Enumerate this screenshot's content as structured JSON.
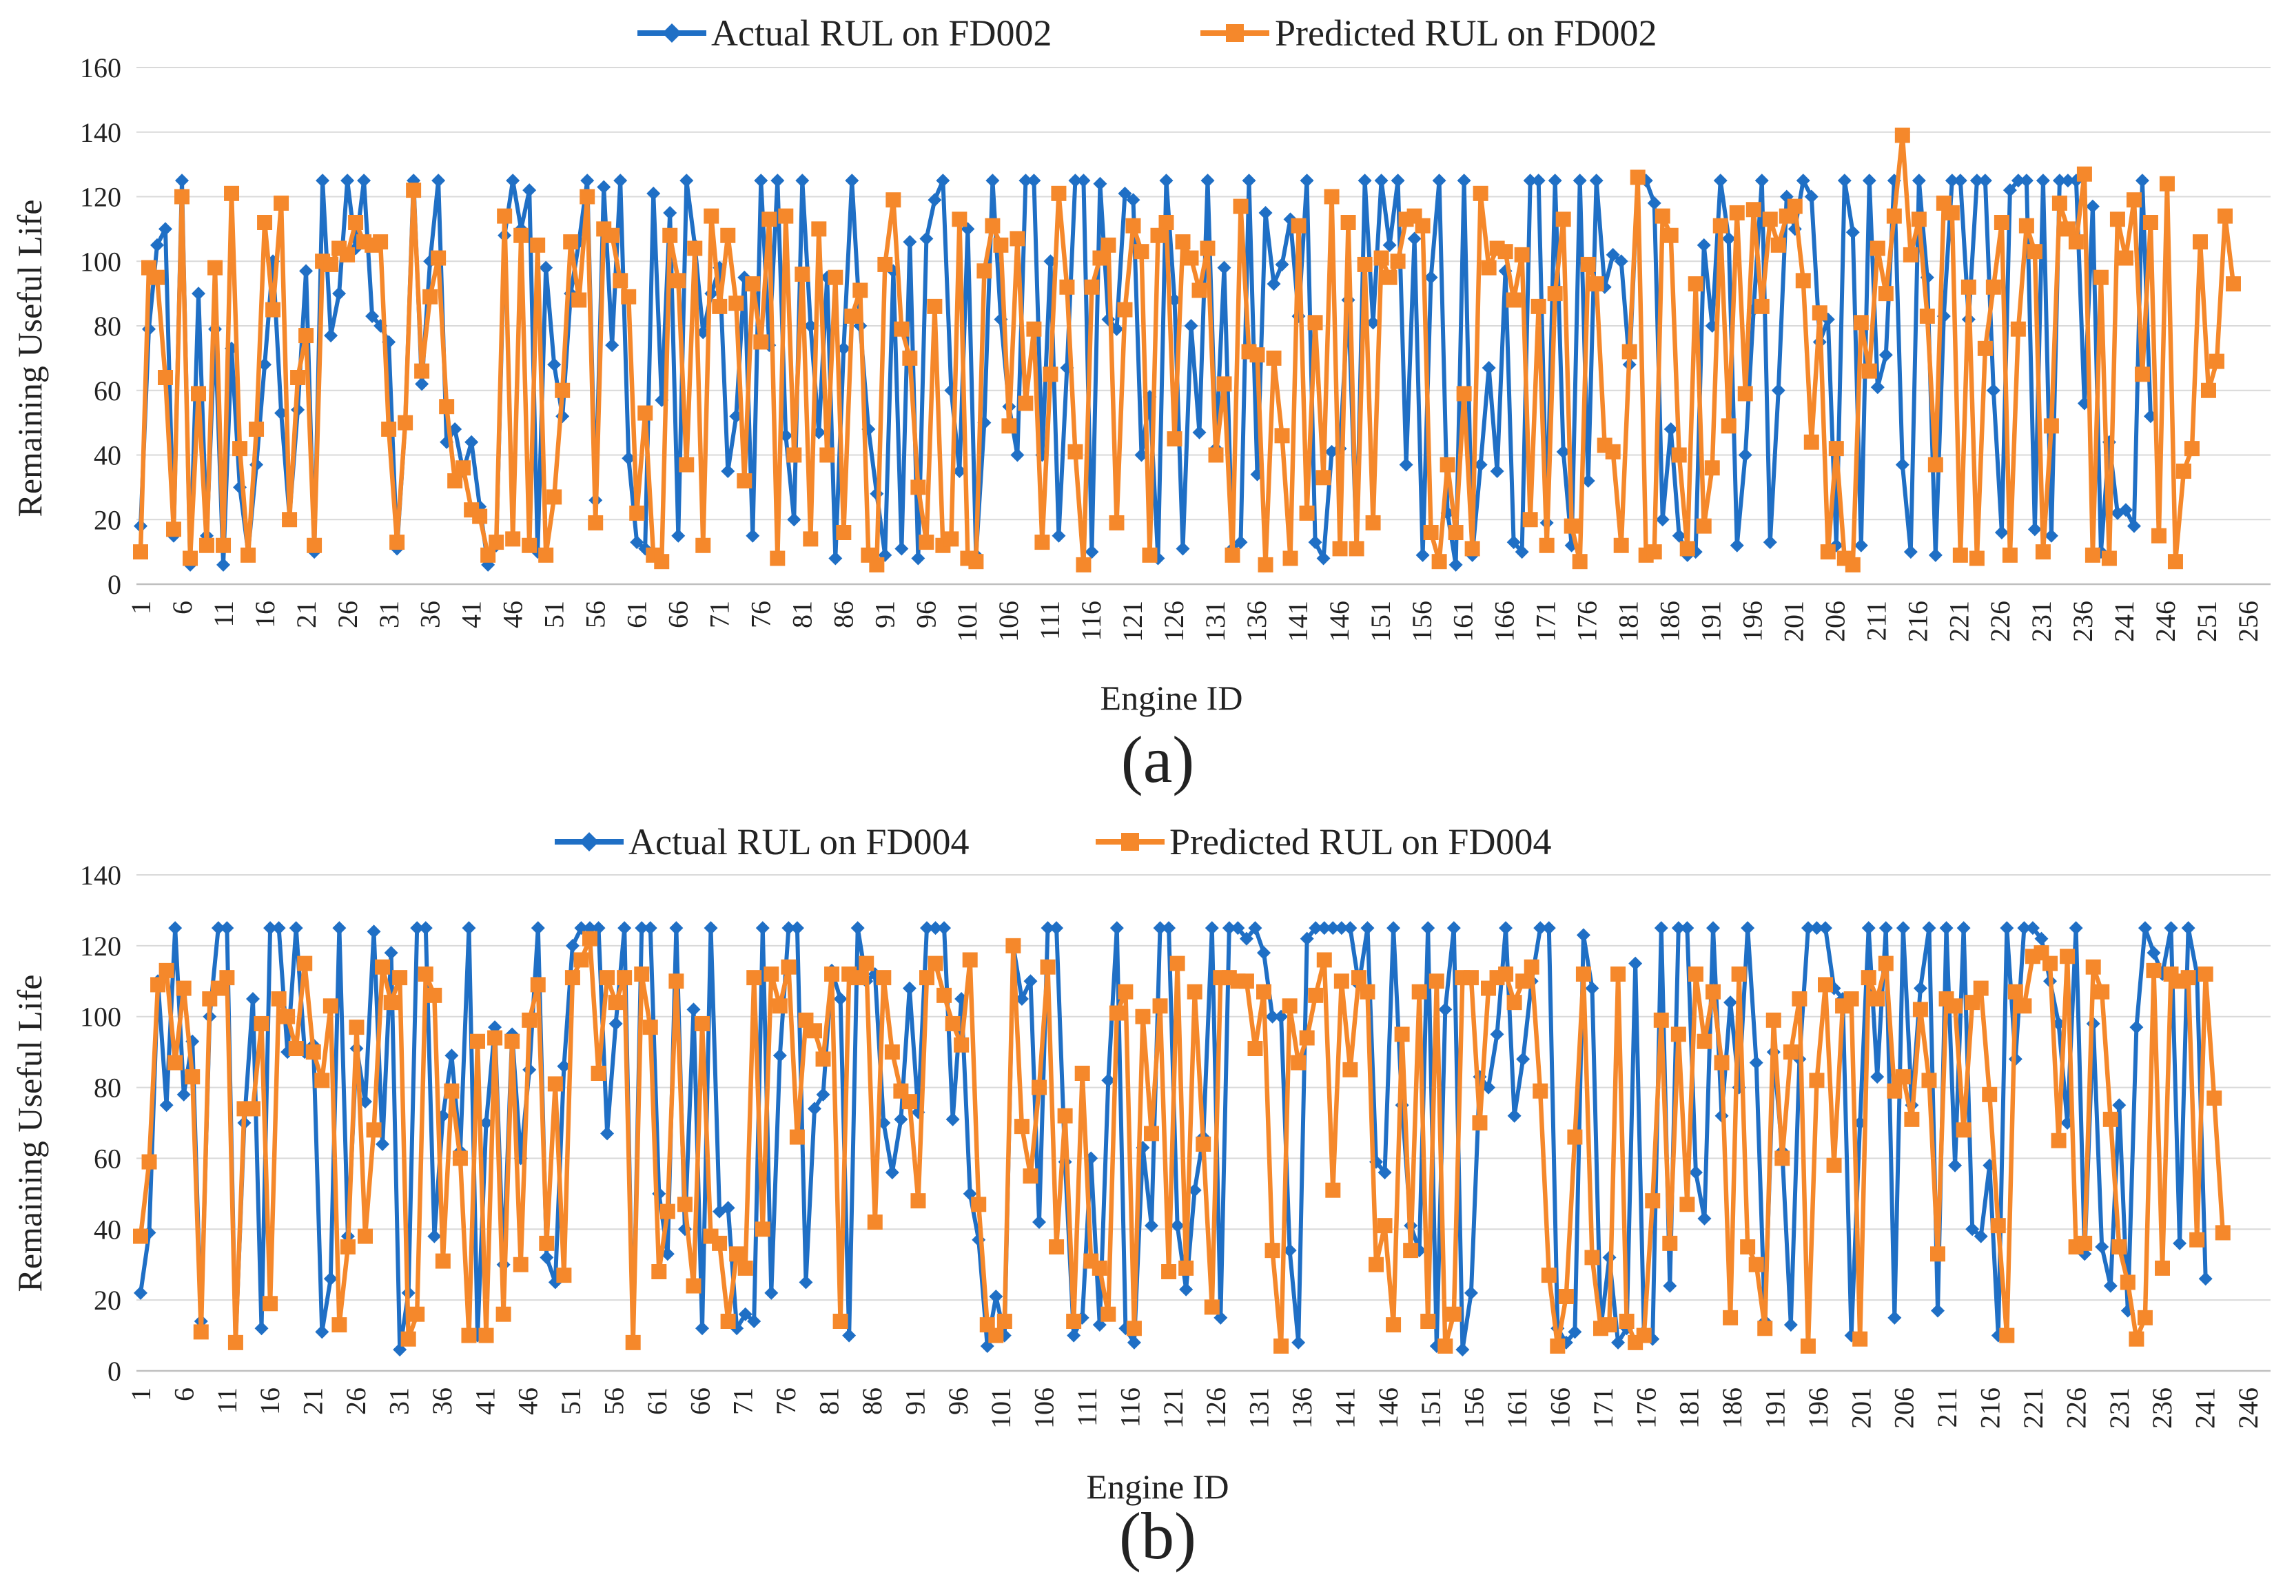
{
  "colors": {
    "actual": "#1f6fc5",
    "predicted": "#f5882b",
    "grid": "#d9d9d9"
  },
  "chart_data": [
    {
      "type": "line",
      "panel_label": "(a)",
      "xlabel": "Engine ID",
      "ylabel": "Remaining Useful Life",
      "ylim": [
        0,
        160
      ],
      "yticks": [
        0,
        20,
        40,
        60,
        80,
        100,
        120,
        140,
        160
      ],
      "xlim": [
        1,
        259
      ],
      "xtick_labels": [
        "1",
        "6",
        "11",
        "16",
        "21",
        "26",
        "31",
        "36",
        "41",
        "46",
        "51",
        "56",
        "61",
        "66",
        "71",
        "76",
        "81",
        "86",
        "91",
        "96",
        "101",
        "106",
        "111",
        "116",
        "121",
        "126",
        "131",
        "136",
        "141",
        "146",
        "151",
        "156",
        "161",
        "166",
        "171",
        "176",
        "181",
        "186",
        "191",
        "196",
        "201",
        "206",
        "211",
        "216",
        "221",
        "226",
        "231",
        "236",
        "241",
        "246",
        "251",
        "256"
      ],
      "grid": true,
      "legend": "top",
      "markers": {
        "actual": "diamond",
        "predicted": "square"
      },
      "series": [
        {
          "name": "Actual RUL on FD002",
          "values": [
            18,
            79,
            105,
            110,
            15,
            125,
            6,
            90,
            15,
            79,
            6,
            73,
            30,
            10,
            37,
            68,
            100,
            53,
            21,
            54,
            97,
            10,
            125,
            77,
            90,
            125,
            104,
            125,
            83,
            80,
            75,
            11,
            50,
            125,
            62,
            100,
            125,
            44,
            48,
            35,
            44,
            24,
            6,
            12,
            108,
            125,
            110,
            122,
            10,
            98,
            68,
            52,
            90,
            106,
            125,
            26,
            123,
            74,
            125,
            39,
            13,
            11,
            121,
            57,
            115,
            15,
            125,
            105,
            78,
            90,
            98,
            35,
            52,
            95,
            15,
            125,
            74,
            125,
            46,
            20,
            125,
            80,
            47,
            95,
            8,
            73,
            125,
            80,
            48,
            28,
            9,
            97,
            11,
            106,
            8,
            107,
            119,
            125,
            60,
            35,
            110,
            9,
            50,
            125,
            82,
            55,
            40,
            125,
            125,
            40,
            100,
            15,
            67,
            125,
            125,
            10,
            124,
            82,
            79,
            121,
            119,
            40,
            58,
            8,
            125,
            88,
            11,
            80,
            47,
            125,
            42,
            98,
            11,
            13,
            125,
            34,
            115,
            93,
            99,
            113,
            83,
            125,
            13,
            8,
            41,
            42,
            88,
            12,
            125,
            81,
            125,
            105,
            125,
            37,
            107,
            9,
            95,
            125,
            22,
            6,
            125,
            9,
            37,
            67,
            35,
            97,
            13,
            10,
            125,
            125,
            19,
            125,
            41,
            12,
            125,
            32,
            125,
            92,
            102,
            100,
            68,
            125,
            125,
            118,
            20,
            48,
            15,
            9,
            10,
            105,
            80,
            125,
            107,
            12,
            40,
            85,
            125,
            13,
            60,
            120,
            110,
            125,
            120,
            75,
            82,
            12,
            125,
            109,
            12,
            125,
            61,
            71,
            125,
            37,
            10,
            125,
            95,
            9,
            83,
            125,
            125,
            82,
            125,
            125,
            60,
            16,
            122,
            125,
            125,
            17,
            125,
            15,
            125,
            125,
            125,
            56,
            117,
            10,
            44,
            22,
            23,
            18,
            125,
            52
          ]
        },
        {
          "name": "Predicted RUL on FD002",
          "values": [
            10,
            98,
            95,
            64,
            17,
            120,
            8,
            59,
            12,
            98,
            12,
            121,
            42,
            9,
            48,
            112,
            85,
            118,
            20,
            64,
            77,
            12,
            100,
            99,
            104,
            102,
            112,
            106,
            105,
            106,
            48,
            13,
            50,
            122,
            66,
            89,
            101,
            55,
            32,
            36,
            23,
            21,
            9,
            13,
            114,
            14,
            108,
            12,
            105,
            9,
            27,
            60,
            106,
            88,
            120,
            19,
            110,
            108,
            94,
            89,
            22,
            53,
            9,
            7,
            108,
            94,
            37,
            104,
            12,
            114,
            86,
            108,
            87,
            32,
            93,
            75,
            113,
            8,
            114,
            40,
            96,
            14,
            110,
            40,
            95,
            16,
            83,
            91,
            9,
            6,
            99,
            119,
            79,
            70,
            30,
            13,
            86,
            12,
            14,
            113,
            8,
            7,
            97,
            111,
            105,
            49,
            107,
            56,
            79,
            13,
            65,
            121,
            92,
            41,
            6,
            92,
            101,
            105,
            19,
            85,
            111,
            103,
            9,
            108,
            112,
            45,
            106,
            101,
            91,
            104,
            40,
            62,
            9,
            117,
            72,
            71,
            6,
            70,
            46,
            8,
            111,
            22,
            81,
            33,
            120,
            11,
            112,
            11,
            99,
            19,
            101,
            95,
            100,
            113,
            114,
            111,
            16,
            7,
            37,
            16,
            59,
            11,
            121,
            98,
            104,
            103,
            88,
            102,
            20,
            86,
            12,
            90,
            113,
            18,
            7,
            99,
            93,
            43,
            41,
            12,
            72,
            126,
            9,
            10,
            114,
            108,
            40,
            11,
            93,
            18,
            36,
            111,
            49,
            115,
            59,
            116,
            86,
            113,
            105,
            114,
            117,
            94,
            44,
            84,
            10,
            42,
            8,
            6,
            81,
            66,
            104,
            90,
            114,
            139,
            102,
            113,
            83,
            37,
            118,
            115,
            9,
            92,
            8,
            73,
            92,
            112,
            9,
            79,
            111,
            103,
            10,
            49,
            118,
            110,
            106,
            127,
            9,
            95,
            8,
            113,
            101,
            119,
            65,
            112,
            15,
            124,
            7,
            35,
            42,
            106,
            60,
            69,
            114,
            93
          ]
        }
      ]
    },
    {
      "type": "line",
      "panel_label": "(b)",
      "xlabel": "Engine ID",
      "ylabel": "Remaining Useful Life",
      "ylim": [
        0,
        140
      ],
      "yticks": [
        0,
        20,
        40,
        60,
        80,
        100,
        120,
        140
      ],
      "xlim": [
        1,
        248
      ],
      "xtick_labels": [
        "1",
        "6",
        "11",
        "16",
        "21",
        "26",
        "31",
        "36",
        "41",
        "46",
        "51",
        "56",
        "61",
        "66",
        "71",
        "76",
        "81",
        "86",
        "91",
        "96",
        "101",
        "106",
        "111",
        "116",
        "121",
        "126",
        "131",
        "136",
        "141",
        "146",
        "151",
        "156",
        "161",
        "166",
        "171",
        "176",
        "181",
        "186",
        "191",
        "196",
        "201",
        "206",
        "211",
        "216",
        "221",
        "226",
        "231",
        "236",
        "241",
        "246"
      ],
      "grid": true,
      "legend": "top",
      "markers": {
        "actual": "diamond",
        "predicted": "square"
      },
      "series": [
        {
          "name": "Actual RUL on FD004",
          "values": [
            22,
            39,
            110,
            75,
            125,
            78,
            93,
            14,
            100,
            125,
            125,
            8,
            70,
            105,
            12,
            125,
            125,
            90,
            125,
            90,
            92,
            11,
            26,
            125,
            38,
            91,
            76,
            124,
            64,
            118,
            6,
            22,
            125,
            125,
            38,
            72,
            89,
            62,
            125,
            10,
            70,
            97,
            30,
            95,
            60,
            85,
            125,
            32,
            25,
            86,
            120,
            125,
            125,
            125,
            67,
            98,
            125,
            8,
            125,
            125,
            50,
            33,
            125,
            40,
            102,
            12,
            125,
            45,
            46,
            12,
            16,
            14,
            125,
            22,
            89,
            125,
            125,
            25,
            74,
            78,
            113,
            105,
            10,
            125,
            110,
            112,
            70,
            56,
            71,
            108,
            73,
            125,
            125,
            125,
            71,
            105,
            50,
            37,
            7,
            21,
            10,
            120,
            105,
            110,
            42,
            125,
            125,
            59,
            10,
            15,
            60,
            13,
            82,
            125,
            12,
            8,
            63,
            41,
            125,
            125,
            41,
            23,
            51,
            66,
            125,
            15,
            125,
            125,
            122,
            125,
            118,
            100,
            100,
            34,
            8,
            122,
            125,
            125,
            125,
            125,
            125,
            109,
            125,
            59,
            56,
            125,
            75,
            41,
            34,
            125,
            7,
            102,
            125,
            6,
            22,
            83,
            80,
            95,
            125,
            72,
            88,
            110,
            125,
            125,
            12,
            8,
            11,
            123,
            108,
            12,
            32,
            8,
            12,
            115,
            11,
            9,
            125,
            24,
            125,
            125,
            56,
            43,
            125,
            72,
            104,
            80,
            125,
            87,
            14,
            90,
            62,
            13,
            88,
            125,
            125,
            125,
            108,
            105,
            10,
            70,
            125,
            83,
            125,
            15,
            125,
            75,
            108,
            125,
            17,
            125,
            58,
            125,
            40,
            38,
            58,
            10,
            125,
            88,
            125,
            125,
            122,
            110,
            98,
            70,
            125,
            33,
            98,
            35,
            24,
            75,
            17,
            97,
            125,
            118,
            112,
            125,
            36,
            125,
            112,
            26
          ]
        },
        {
          "name": "Predicted RUL on FD004",
          "values": [
            38,
            59,
            109,
            113,
            87,
            108,
            83,
            11,
            105,
            108,
            111,
            8,
            74,
            74,
            98,
            19,
            105,
            100,
            91,
            115,
            90,
            82,
            103,
            13,
            35,
            97,
            38,
            68,
            114,
            104,
            111,
            9,
            16,
            112,
            106,
            31,
            79,
            60,
            10,
            93,
            10,
            94,
            16,
            93,
            30,
            99,
            109,
            36,
            81,
            27,
            111,
            116,
            122,
            84,
            111,
            104,
            111,
            8,
            112,
            97,
            28,
            45,
            110,
            47,
            24,
            98,
            38,
            36,
            14,
            33,
            29,
            111,
            40,
            112,
            103,
            114,
            66,
            99,
            96,
            88,
            112,
            14,
            112,
            111,
            115,
            42,
            111,
            90,
            79,
            76,
            48,
            111,
            115,
            106,
            98,
            92,
            116,
            47,
            13,
            10,
            14,
            120,
            69,
            55,
            80,
            114,
            35,
            72,
            14,
            84,
            31,
            29,
            16,
            101,
            107,
            12,
            100,
            67,
            103,
            28,
            115,
            29,
            107,
            64,
            18,
            111,
            111,
            110,
            110,
            91,
            107,
            34,
            7,
            103,
            87,
            94,
            106,
            116,
            51,
            110,
            85,
            111,
            107,
            30,
            41,
            13,
            95,
            34,
            107,
            14,
            110,
            7,
            16,
            111,
            111,
            70,
            108,
            111,
            112,
            104,
            110,
            114,
            79,
            27,
            7,
            21,
            66,
            112,
            32,
            12,
            13,
            112,
            14,
            8,
            10,
            48,
            99,
            36,
            95,
            47,
            112,
            93,
            107,
            87,
            15,
            112,
            35,
            30,
            12,
            99,
            60,
            90,
            105,
            7,
            82,
            109,
            58,
            103,
            105,
            9,
            111,
            105,
            115,
            79,
            83,
            71,
            102,
            82,
            33,
            105,
            103,
            68,
            104,
            108,
            78,
            41,
            10,
            107,
            103,
            117,
            118,
            115,
            65,
            117,
            35,
            36,
            114,
            107,
            71,
            35,
            25,
            9,
            15,
            113,
            29,
            112,
            110,
            111,
            37,
            112,
            77,
            39
          ]
        }
      ]
    }
  ]
}
